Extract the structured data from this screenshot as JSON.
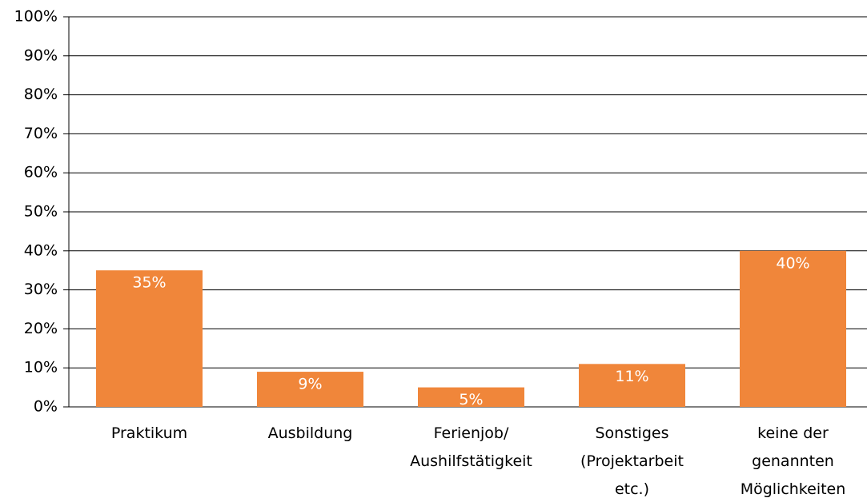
{
  "chart_data": {
    "type": "bar",
    "categories": [
      "Praktikum",
      "Ausbildung",
      "Ferienjob/\nAushilfstätigkeit",
      "Sonstiges\n(Projektarbeit\netc.)",
      "keine der\ngenannten\nMöglichkeiten"
    ],
    "values": [
      35,
      9,
      5,
      11,
      40
    ],
    "value_labels": [
      "35%",
      "9%",
      "5%",
      "11%",
      "40%"
    ],
    "color": "#f0863a",
    "ylim": [
      0,
      100
    ],
    "yticks": [
      {
        "value": 0,
        "label": "0%"
      },
      {
        "value": 10,
        "label": "10%"
      },
      {
        "value": 20,
        "label": "20%"
      },
      {
        "value": 30,
        "label": "30%"
      },
      {
        "value": 40,
        "label": "40%"
      },
      {
        "value": 50,
        "label": "50%"
      },
      {
        "value": 60,
        "label": "60%"
      },
      {
        "value": 70,
        "label": "70%"
      },
      {
        "value": 80,
        "label": "80%"
      },
      {
        "value": 90,
        "label": "90%"
      },
      {
        "value": 100,
        "label": "100%"
      }
    ],
    "grid": true
  }
}
